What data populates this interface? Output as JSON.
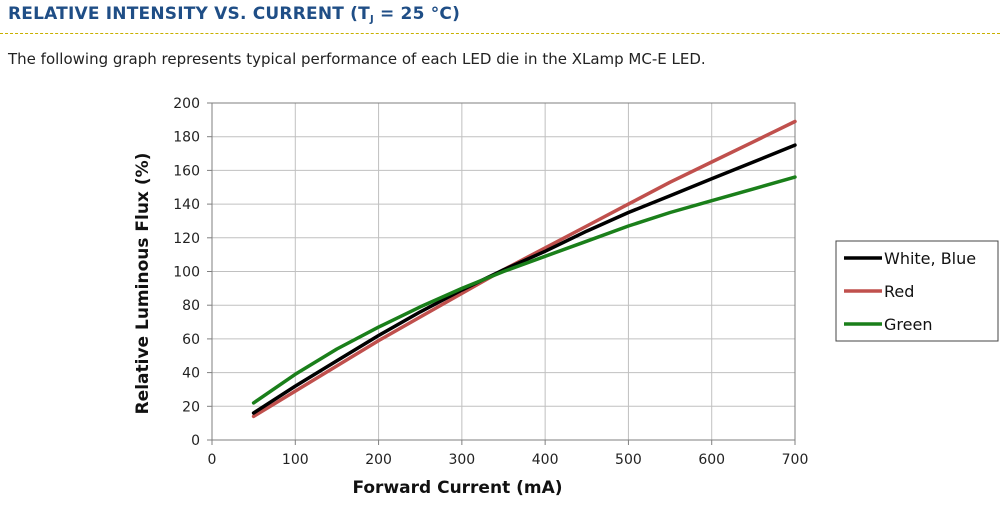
{
  "header": {
    "title_prefix": "RELATIVE INTENSITY VS. CURRENT (T",
    "title_subscript": "J",
    "title_suffix": " = 25 °C)"
  },
  "description": "The following graph represents typical performance of each LED die in the XLamp MC-E LED.",
  "colors": {
    "heading": "#1f4e86",
    "white_blue": "#000000",
    "red": "#c0504d",
    "green": "#1a7f1a"
  },
  "chart_data": {
    "type": "line",
    "title": "",
    "xlabel": "Forward Current (mA)",
    "ylabel": "Relative Luminous Flux (%)",
    "xlim": [
      0,
      700
    ],
    "ylim": [
      0,
      200
    ],
    "xticks": [
      0,
      100,
      200,
      300,
      400,
      500,
      600,
      700
    ],
    "yticks": [
      0,
      20,
      40,
      60,
      80,
      100,
      120,
      140,
      160,
      180,
      200
    ],
    "grid": true,
    "legend_position": "right",
    "series": [
      {
        "name": "White, Blue",
        "color": "#000000",
        "x": [
          50,
          100,
          150,
          200,
          250,
          300,
          350,
          400,
          450,
          500,
          550,
          600,
          650,
          700
        ],
        "y": [
          16,
          32,
          47,
          62,
          76,
          89,
          101,
          112,
          124,
          135,
          145,
          155,
          165,
          175
        ]
      },
      {
        "name": "Red",
        "color": "#c0504d",
        "x": [
          50,
          100,
          150,
          200,
          250,
          300,
          350,
          400,
          450,
          500,
          550,
          600,
          650,
          700
        ],
        "y": [
          14,
          29,
          44,
          59,
          73,
          87,
          101,
          114,
          127,
          140,
          153,
          165,
          177,
          189
        ]
      },
      {
        "name": "Green",
        "color": "#1a7f1a",
        "x": [
          50,
          100,
          150,
          200,
          250,
          300,
          350,
          400,
          450,
          500,
          550,
          600,
          650,
          700
        ],
        "y": [
          22,
          39,
          54,
          67,
          79,
          90,
          100,
          109,
          118,
          127,
          135,
          142,
          149,
          156
        ]
      }
    ]
  }
}
